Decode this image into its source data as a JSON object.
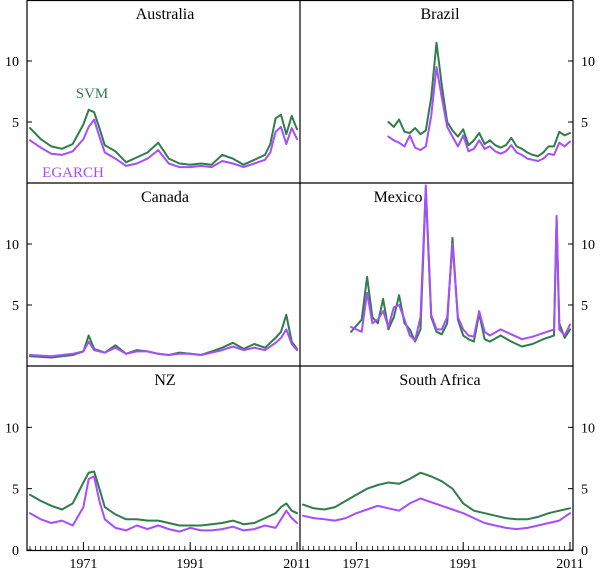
{
  "chart_data": {
    "type": "line",
    "layout": "3x2 grid of panels",
    "x_axis": {
      "range": [
        1961,
        2011
      ],
      "tick_labels": [
        "1971",
        "1991",
        "2011"
      ]
    },
    "y_axis": {
      "range": [
        0,
        15
      ],
      "tick_labels": [
        "0",
        "5",
        "10"
      ]
    },
    "series_styles": [
      {
        "name": "SVM",
        "color": "#2e7d4a"
      },
      {
        "name": "EGARCH",
        "color": "#a64dff"
      }
    ],
    "panels": [
      {
        "title": "Australia",
        "series_labels": [
          "SVM",
          "EGARCH"
        ],
        "series": [
          {
            "name": "SVM",
            "x": [
              1961,
              1963,
              1965,
              1967,
              1969,
              1971,
              1972,
              1973,
              1974,
              1975,
              1977,
              1979,
              1981,
              1983,
              1985,
              1987,
              1989,
              1991,
              1993,
              1995,
              1997,
              1999,
              2001,
              2003,
              2005,
              2006,
              2007,
              2008,
              2009,
              2010,
              2011
            ],
            "y": [
              4.5,
              3.6,
              3.0,
              2.8,
              3.2,
              4.8,
              6.0,
              5.8,
              4.5,
              3.1,
              2.6,
              1.7,
              2.1,
              2.5,
              3.3,
              2.0,
              1.6,
              1.5,
              1.6,
              1.5,
              2.3,
              2.0,
              1.5,
              1.9,
              2.3,
              3.2,
              5.3,
              5.6,
              4.0,
              5.5,
              4.4
            ]
          },
          {
            "name": "EGARCH",
            "x": [
              1961,
              1963,
              1965,
              1967,
              1969,
              1971,
              1972,
              1973,
              1974,
              1975,
              1977,
              1979,
              1981,
              1983,
              1985,
              1987,
              1989,
              1991,
              1993,
              1995,
              1997,
              1999,
              2001,
              2003,
              2005,
              2006,
              2007,
              2008,
              2009,
              2010,
              2011
            ],
            "y": [
              3.5,
              2.9,
              2.4,
              2.3,
              2.6,
              3.6,
              4.6,
              5.2,
              3.8,
              2.5,
              2.0,
              1.4,
              1.6,
              2.0,
              2.7,
              1.6,
              1.3,
              1.3,
              1.4,
              1.3,
              1.8,
              1.6,
              1.3,
              1.6,
              1.9,
              2.5,
              4.2,
              4.6,
              3.2,
              4.5,
              3.6
            ]
          }
        ]
      },
      {
        "title": "Brazil",
        "series_labels": [],
        "series": [
          {
            "name": "SVM",
            "x": [
              1977,
              1978,
              1979,
              1980,
              1981,
              1982,
              1983,
              1984,
              1985,
              1986,
              1987,
              1988,
              1989,
              1990,
              1991,
              1992,
              1993,
              1994,
              1995,
              1996,
              1997,
              1998,
              1999,
              2000,
              2001,
              2002,
              2003,
              2004,
              2005,
              2006,
              2007,
              2008,
              2009,
              2010,
              2011
            ],
            "y": [
              5.0,
              4.6,
              5.2,
              4.2,
              4.1,
              4.5,
              4.0,
              4.3,
              7.0,
              11.5,
              8.0,
              5.0,
              4.3,
              3.8,
              4.4,
              3.1,
              3.5,
              4.1,
              3.2,
              3.5,
              3.1,
              2.9,
              3.1,
              3.7,
              3.0,
              2.8,
              2.5,
              2.3,
              2.2,
              2.5,
              3.0,
              3.0,
              4.2,
              3.9,
              4.1
            ]
          },
          {
            "name": "EGARCH",
            "x": [
              1977,
              1978,
              1979,
              1980,
              1981,
              1982,
              1983,
              1984,
              1985,
              1986,
              1987,
              1988,
              1989,
              1990,
              1991,
              1992,
              1993,
              1994,
              1995,
              1996,
              1997,
              1998,
              1999,
              2000,
              2001,
              2002,
              2003,
              2004,
              2005,
              2006,
              2007,
              2008,
              2009,
              2010,
              2011
            ],
            "y": [
              3.8,
              3.5,
              3.3,
              3.0,
              3.9,
              2.9,
              2.7,
              3.0,
              5.5,
              9.5,
              7.0,
              4.6,
              3.8,
              3.0,
              3.9,
              2.6,
              2.8,
              3.5,
              2.8,
              3.0,
              2.6,
              2.4,
              2.6,
              3.1,
              2.5,
              2.3,
              2.0,
              1.9,
              1.8,
              2.0,
              2.4,
              2.3,
              3.3,
              3.0,
              3.4
            ]
          }
        ]
      },
      {
        "title": "Canada",
        "series_labels": [],
        "series": [
          {
            "name": "SVM",
            "x": [
              1961,
              1965,
              1969,
              1971,
              1972,
              1973,
              1975,
              1977,
              1979,
              1981,
              1983,
              1985,
              1987,
              1989,
              1991,
              1993,
              1995,
              1997,
              1999,
              2001,
              2003,
              2005,
              2007,
              2008,
              2009,
              2010,
              2011
            ],
            "y": [
              0.8,
              0.7,
              0.9,
              1.2,
              2.5,
              1.4,
              1.1,
              1.7,
              1.0,
              1.3,
              1.2,
              1.0,
              0.9,
              1.1,
              1.0,
              0.9,
              1.2,
              1.5,
              1.9,
              1.4,
              1.8,
              1.5,
              2.3,
              2.8,
              4.2,
              2.0,
              1.4
            ]
          },
          {
            "name": "EGARCH",
            "x": [
              1961,
              1965,
              1969,
              1971,
              1972,
              1973,
              1975,
              1977,
              1979,
              1981,
              1983,
              1985,
              1987,
              1989,
              1991,
              1993,
              1995,
              1997,
              1999,
              2001,
              2003,
              2005,
              2007,
              2008,
              2009,
              2010,
              2011
            ],
            "y": [
              0.9,
              0.8,
              1.0,
              1.2,
              2.0,
              1.3,
              1.1,
              1.5,
              1.0,
              1.2,
              1.2,
              1.0,
              0.9,
              1.0,
              1.0,
              0.9,
              1.1,
              1.3,
              1.6,
              1.3,
              1.5,
              1.3,
              1.9,
              2.3,
              3.0,
              1.8,
              1.3
            ]
          }
        ]
      },
      {
        "title": "Mexico",
        "series_labels": [],
        "series": [
          {
            "name": "SVM",
            "x": [
              1970,
              1972,
              1973,
              1974,
              1975,
              1976,
              1977,
              1978,
              1979,
              1980,
              1981,
              1982,
              1983,
              1984,
              1985,
              1986,
              1987,
              1988,
              1989,
              1990,
              1991,
              1992,
              1993,
              1994,
              1995,
              1996,
              1998,
              2000,
              2002,
              2004,
              2006,
              2008,
              2008.5,
              2009,
              2010,
              2011
            ],
            "y": [
              2.8,
              3.8,
              7.3,
              4.0,
              3.5,
              5.5,
              3.0,
              4.0,
              5.8,
              3.5,
              3.0,
              2.0,
              3.0,
              14.5,
              4.0,
              2.8,
              2.6,
              3.5,
              10.5,
              3.8,
              2.5,
              2.2,
              2.0,
              4.3,
              2.2,
              2.0,
              2.5,
              2.0,
              1.6,
              1.8,
              2.2,
              2.5,
              12.0,
              3.5,
              2.3,
              3.0
            ]
          },
          {
            "name": "EGARCH",
            "x": [
              1970,
              1972,
              1973,
              1974,
              1975,
              1976,
              1977,
              1978,
              1979,
              1980,
              1981,
              1982,
              1983,
              1984,
              1985,
              1986,
              1987,
              1988,
              1989,
              1990,
              1991,
              1992,
              1993,
              1994,
              1995,
              1996,
              1998,
              2000,
              2002,
              2004,
              2006,
              2008,
              2008.5,
              2009,
              2010,
              2011
            ],
            "y": [
              3.2,
              2.8,
              6.0,
              3.5,
              3.8,
              4.5,
              3.2,
              4.8,
              5.0,
              3.8,
              2.5,
              2.1,
              4.0,
              14.8,
              4.2,
              3.0,
              3.0,
              4.0,
              10.0,
              4.0,
              3.0,
              2.5,
              2.4,
              4.5,
              2.8,
              2.5,
              3.0,
              2.6,
              2.2,
              2.4,
              2.7,
              3.0,
              12.3,
              3.0,
              2.5,
              3.4
            ]
          }
        ]
      },
      {
        "title": "NZ",
        "series_labels": [],
        "series": [
          {
            "name": "SVM",
            "x": [
              1961,
              1963,
              1965,
              1967,
              1969,
              1971,
              1972,
              1973,
              1974,
              1975,
              1977,
              1979,
              1981,
              1983,
              1985,
              1987,
              1989,
              1991,
              1993,
              1995,
              1997,
              1999,
              2001,
              2003,
              2005,
              2007,
              2008,
              2009,
              2010,
              2011
            ],
            "y": [
              4.5,
              4.0,
              3.6,
              3.3,
              3.8,
              5.5,
              6.3,
              6.4,
              5.0,
              3.5,
              2.9,
              2.5,
              2.5,
              2.4,
              2.4,
              2.2,
              2.0,
              2.0,
              2.0,
              2.1,
              2.2,
              2.4,
              2.1,
              2.2,
              2.6,
              3.0,
              3.5,
              3.8,
              3.2,
              3.0
            ]
          },
          {
            "name": "EGARCH",
            "x": [
              1961,
              1963,
              1965,
              1967,
              1969,
              1971,
              1972,
              1973,
              1974,
              1975,
              1977,
              1979,
              1981,
              1983,
              1985,
              1987,
              1989,
              1991,
              1993,
              1995,
              1997,
              1999,
              2001,
              2003,
              2005,
              2007,
              2008,
              2009,
              2010,
              2011
            ],
            "y": [
              3.0,
              2.5,
              2.2,
              2.4,
              2.0,
              3.5,
              5.8,
              6.0,
              4.0,
              2.5,
              1.8,
              1.6,
              2.0,
              1.7,
              2.0,
              1.7,
              1.5,
              1.8,
              1.6,
              1.6,
              1.7,
              1.9,
              1.6,
              1.7,
              2.0,
              1.8,
              2.5,
              3.2,
              2.6,
              2.2
            ]
          }
        ]
      },
      {
        "title": "South Africa",
        "series_labels": [],
        "series": [
          {
            "name": "SVM",
            "x": [
              1961,
              1963,
              1965,
              1967,
              1969,
              1971,
              1973,
              1975,
              1977,
              1979,
              1981,
              1983,
              1985,
              1987,
              1989,
              1991,
              1993,
              1995,
              1997,
              1999,
              2001,
              2003,
              2005,
              2007,
              2009,
              2011
            ],
            "y": [
              3.7,
              3.4,
              3.3,
              3.5,
              4.0,
              4.5,
              5.0,
              5.3,
              5.5,
              5.4,
              5.8,
              6.3,
              6.0,
              5.6,
              5.0,
              3.8,
              3.2,
              3.0,
              2.8,
              2.6,
              2.5,
              2.5,
              2.7,
              3.0,
              3.2,
              3.4
            ]
          },
          {
            "name": "EGARCH",
            "x": [
              1961,
              1963,
              1965,
              1967,
              1969,
              1971,
              1973,
              1975,
              1977,
              1979,
              1981,
              1983,
              1985,
              1987,
              1989,
              1991,
              1993,
              1995,
              1997,
              1999,
              2001,
              2003,
              2005,
              2007,
              2009,
              2011
            ],
            "y": [
              2.8,
              2.6,
              2.5,
              2.4,
              2.6,
              3.0,
              3.3,
              3.6,
              3.4,
              3.2,
              3.8,
              4.2,
              3.9,
              3.6,
              3.3,
              3.0,
              2.6,
              2.2,
              2.0,
              1.8,
              1.7,
              1.8,
              2.0,
              2.2,
              2.4,
              3.0
            ]
          }
        ]
      }
    ]
  }
}
